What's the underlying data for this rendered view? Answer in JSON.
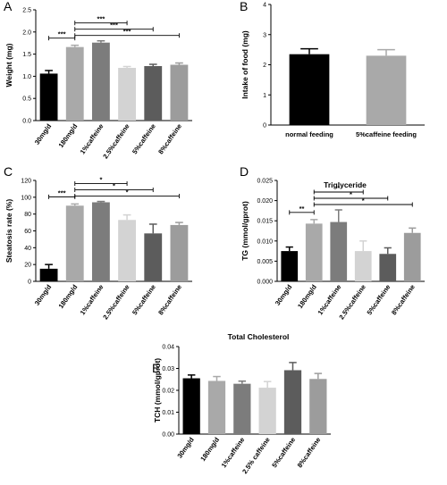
{
  "chart_data": [
    {
      "panel": "A",
      "type": "bar",
      "title": "",
      "ylabel": "Weight (mg)",
      "ylim": [
        0,
        2.5
      ],
      "yticks": [
        "0.0",
        "0.5",
        "1.0",
        "1.5",
        "2.0",
        "2.5"
      ],
      "categories": [
        "30mg/d",
        "180mg/d",
        "1%caffeine",
        "2.5%caffeine",
        "5%caffeine",
        "8%caffeine"
      ],
      "values": [
        1.06,
        1.66,
        1.76,
        1.19,
        1.23,
        1.26
      ],
      "errors": [
        0.07,
        0.04,
        0.04,
        0.03,
        0.04,
        0.04
      ],
      "colors": [
        "#000000",
        "#a9a9a9",
        "#7c7c7c",
        "#d3d3d3",
        "#5c5c5c",
        "#9c9c9c"
      ],
      "significance": [
        {
          "from": 0,
          "to": 1,
          "label": "***"
        },
        {
          "from": 1,
          "to": 3,
          "label": "***"
        },
        {
          "from": 1,
          "to": 4,
          "label": "***"
        },
        {
          "from": 1,
          "to": 5,
          "label": "***"
        }
      ]
    },
    {
      "panel": "B",
      "type": "bar",
      "title": "",
      "ylabel": "Intake of food (mg)",
      "ylim": [
        0,
        4
      ],
      "yticks": [
        "0",
        "1",
        "2",
        "3",
        "4"
      ],
      "categories": [
        "normal feeding",
        "5%caffeine feeding"
      ],
      "values": [
        2.35,
        2.3
      ],
      "errors": [
        0.18,
        0.2
      ],
      "colors": [
        "#000000",
        "#a9a9a9"
      ],
      "significance": []
    },
    {
      "panel": "C",
      "type": "bar",
      "title": "",
      "ylabel": "Steatosis rate (%)",
      "ylim": [
        0,
        120
      ],
      "yticks": [
        "0",
        "20",
        "40",
        "60",
        "80",
        "100",
        "120"
      ],
      "categories": [
        "30mg/d",
        "180mg/d",
        "1%caffeine",
        "2.5%caffeine",
        "5%caffeine",
        "8%caffeine"
      ],
      "values": [
        15,
        90,
        94,
        73,
        57,
        67
      ],
      "errors": [
        5,
        2,
        1,
        6,
        11,
        3
      ],
      "colors": [
        "#000000",
        "#a9a9a9",
        "#7c7c7c",
        "#d3d3d3",
        "#5c5c5c",
        "#9c9c9c"
      ],
      "significance": [
        {
          "from": 0,
          "to": 1,
          "label": "***"
        },
        {
          "from": 1,
          "to": 3,
          "label": "*"
        },
        {
          "from": 1,
          "to": 4,
          "label": "*"
        },
        {
          "from": 1,
          "to": 5,
          "label": "*"
        }
      ]
    },
    {
      "panel": "D",
      "type": "bar",
      "title": "Triglyceride",
      "ylabel": "TG (mmol/gprot)",
      "ylim": [
        0,
        0.025
      ],
      "yticks": [
        "0.000",
        "0.005",
        "0.010",
        "0.015",
        "0.020",
        "0.025"
      ],
      "categories": [
        "30mg/d",
        "180mg/d",
        "1%caffeine",
        "2.5%caffeine",
        "5%caffeine",
        "8%caffeine"
      ],
      "values": [
        0.0075,
        0.0143,
        0.0147,
        0.0075,
        0.0068,
        0.012
      ],
      "errors": [
        0.001,
        0.001,
        0.003,
        0.0025,
        0.0015,
        0.0012
      ],
      "colors": [
        "#000000",
        "#a9a9a9",
        "#7c7c7c",
        "#d3d3d3",
        "#5c5c5c",
        "#9c9c9c"
      ],
      "significance": [
        {
          "from": 0,
          "to": 1,
          "label": "**"
        },
        {
          "from": 1,
          "to": 3,
          "label": "*"
        },
        {
          "from": 1,
          "to": 4,
          "label": "*"
        },
        {
          "from": 1,
          "to": 5,
          "label": "*"
        }
      ]
    },
    {
      "panel": "E",
      "type": "bar",
      "title": "Total Cholesterol",
      "ylabel": "TCH (mmol/gprot)",
      "ylim": [
        0,
        0.04
      ],
      "yticks": [
        "0.00",
        "0.01",
        "0.02",
        "0.03",
        "0.04"
      ],
      "categories": [
        "30mg/d",
        "180mg/d",
        "1%caffeine",
        "2.5% caffeine",
        "5%caffeine",
        "8%caffeine"
      ],
      "values": [
        0.0255,
        0.0243,
        0.023,
        0.0212,
        0.0292,
        0.0252
      ],
      "errors": [
        0.0015,
        0.002,
        0.0012,
        0.0028,
        0.0035,
        0.0025
      ],
      "colors": [
        "#000000",
        "#a9a9a9",
        "#7c7c7c",
        "#d3d3d3",
        "#5c5c5c",
        "#9c9c9c"
      ],
      "significance": []
    }
  ]
}
